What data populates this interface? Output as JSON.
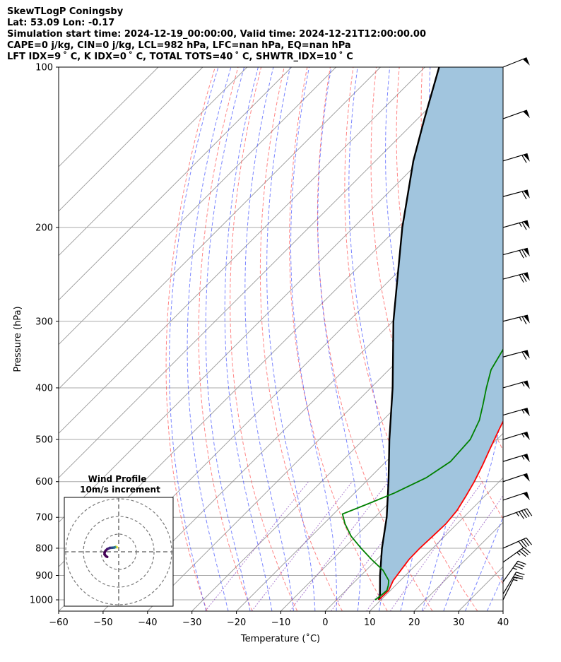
{
  "header": {
    "line1": "SkewTLogP Coningsby",
    "line2": "Lat: 53.09   Lon: -0.17",
    "line3": "Simulation start time: 2024-12-19_00:00:00, Valid time: 2024-12-21T12:00:00.00",
    "line4": "CAPE=0 j/kg, CIN=0 j/kg, LCL=982 hPa, LFC=nan hPa, EQ=nan hPa",
    "line5": "LFT IDX=9 ˚ C, K IDX=0 ˚ C, TOTAL TOTS=40 ˚ C, SHWTR_IDX=10 ˚ C"
  },
  "inset": {
    "title": "Wind Profile",
    "subtitle": "10m/s increment"
  },
  "chart_data": {
    "type": "line",
    "xlabel": "Temperature (˚C)",
    "ylabel": "Pressure (hPa)",
    "xlim": [
      -60,
      40
    ],
    "ylim": [
      1050,
      100
    ],
    "y_scale": "log",
    "x_ticks": [
      "−60",
      "−50",
      "−40",
      "−30",
      "−20",
      "−10",
      "0",
      "10",
      "20",
      "30",
      "40"
    ],
    "y_ticks": [
      "100",
      "200",
      "300",
      "400",
      "500",
      "600",
      "700",
      "800",
      "900",
      "1000"
    ],
    "y_tick_values": [
      100,
      200,
      300,
      400,
      500,
      600,
      700,
      800,
      900,
      1000
    ],
    "colors": {
      "temperature": "#ff0000",
      "dewpoint": "#008000",
      "parcel": "#000000",
      "shade": "#a1c5de",
      "dry_adiabat": "#ff4444",
      "moist_adiabat": "#3344ff",
      "mixing_ratio": "#8844bb",
      "isotherm": "#999999"
    },
    "series": [
      {
        "key": "temperature",
        "values": [
          [
            1000,
            9.5
          ],
          [
            960,
            9.6
          ],
          [
            920,
            8.4
          ],
          [
            880,
            7.8
          ],
          [
            840,
            7.2
          ],
          [
            800,
            7.1
          ],
          [
            760,
            7.3
          ],
          [
            720,
            7.5
          ],
          [
            680,
            7.0
          ],
          [
            640,
            5.8
          ],
          [
            600,
            4.4
          ],
          [
            560,
            2.6
          ],
          [
            520,
            0.5
          ],
          [
            480,
            -1.7
          ],
          [
            440,
            -4.0
          ],
          [
            400,
            -6.6
          ],
          [
            360,
            -9.9
          ],
          [
            320,
            -13.1
          ],
          [
            280,
            -16.5
          ],
          [
            250,
            -18.5
          ],
          [
            230,
            -19.9
          ],
          [
            215,
            -20.4
          ],
          [
            200,
            -20.2
          ],
          [
            190,
            -19.1
          ],
          [
            180,
            -17.2
          ],
          [
            170,
            -14.9
          ],
          [
            158,
            -10.4
          ],
          [
            145,
            -5.8
          ],
          [
            134,
            -2.6
          ],
          [
            124,
            -0.4
          ],
          [
            116,
            0.9
          ],
          [
            108,
            1.4
          ],
          [
            100,
            1.8
          ]
        ]
      },
      {
        "key": "dewpoint",
        "values": [
          [
            1000,
            8.7
          ],
          [
            980,
            9.0
          ],
          [
            960,
            9.2
          ],
          [
            940,
            8.4
          ],
          [
            920,
            7.4
          ],
          [
            880,
            3.8
          ],
          [
            840,
            -1.2
          ],
          [
            800,
            -6.1
          ],
          [
            760,
            -11.0
          ],
          [
            720,
            -15.2
          ],
          [
            690,
            -18.0
          ],
          [
            660,
            -14.5
          ],
          [
            630,
            -11.0
          ],
          [
            590,
            -7.3
          ],
          [
            550,
            -5.5
          ],
          [
            500,
            -6.0
          ],
          [
            460,
            -8.3
          ],
          [
            430,
            -11.0
          ],
          [
            400,
            -14.0
          ],
          [
            370,
            -17.0
          ],
          [
            340,
            -18.8
          ],
          [
            310,
            -20.9
          ],
          [
            280,
            -23.8
          ],
          [
            250,
            -26.8
          ],
          [
            220,
            -28.5
          ],
          [
            200,
            -30.4
          ],
          [
            185,
            -30.4
          ],
          [
            170,
            -29.0
          ],
          [
            160,
            -29.8
          ],
          [
            150,
            -32.0
          ],
          [
            142,
            -34.0
          ],
          [
            130,
            -35.6
          ],
          [
            118,
            -36.5
          ],
          [
            108,
            -37.5
          ],
          [
            100,
            -39.0
          ]
        ]
      },
      {
        "key": "parcel",
        "values": [
          [
            1000,
            9.5
          ],
          [
            982,
            8.8
          ],
          [
            900,
            4.3
          ],
          [
            800,
            -1.4
          ],
          [
            700,
            -7.3
          ],
          [
            600,
            -14.9
          ],
          [
            500,
            -24.2
          ],
          [
            400,
            -35.1
          ],
          [
            300,
            -49.9
          ],
          [
            250,
            -58.5
          ],
          [
            200,
            -69.0
          ],
          [
            150,
            -81.5
          ],
          [
            125,
            -88.5
          ],
          [
            100,
            -96.8
          ]
        ]
      }
    ],
    "wind_barbs": [
      {
        "p": 1000,
        "u": -3,
        "v": -6
      },
      {
        "p": 975,
        "u": -6,
        "v": -10
      },
      {
        "p": 925,
        "u": -10,
        "v": -14
      },
      {
        "p": 850,
        "u": -14,
        "v": -10
      },
      {
        "p": 800,
        "u": -18,
        "v": -8
      },
      {
        "p": 700,
        "u": -22,
        "v": -8
      },
      {
        "p": 650,
        "u": -24,
        "v": -8
      },
      {
        "p": 600,
        "u": -24,
        "v": -8
      },
      {
        "p": 550,
        "u": -26,
        "v": -8
      },
      {
        "p": 500,
        "u": -26,
        "v": -8
      },
      {
        "p": 450,
        "u": -28,
        "v": -8
      },
      {
        "p": 400,
        "u": -28,
        "v": -8
      },
      {
        "p": 350,
        "u": -30,
        "v": -8
      },
      {
        "p": 300,
        "u": -32,
        "v": -8
      },
      {
        "p": 250,
        "u": -34,
        "v": -9
      },
      {
        "p": 225,
        "u": -34,
        "v": -9
      },
      {
        "p": 200,
        "u": -32,
        "v": -9
      },
      {
        "p": 175,
        "u": -30,
        "v": -8
      },
      {
        "p": 150,
        "u": -30,
        "v": -9
      },
      {
        "p": 125,
        "u": -25,
        "v": -9
      },
      {
        "p": 100,
        "u": -25,
        "v": -10
      }
    ],
    "hodograph": {
      "increment_ms": 10,
      "rings": 3,
      "points": [
        [
          2.5,
          1.0
        ],
        [
          2.8,
          1.6
        ],
        [
          2.6,
          2.0
        ],
        [
          2.4,
          2.5
        ],
        [
          2.3,
          3.6
        ],
        [
          2.2,
          5.0
        ],
        [
          1.5,
          6.5
        ],
        [
          0.5,
          7.5
        ],
        [
          -0.5,
          8.0
        ],
        [
          -1.5,
          8.0
        ],
        [
          -2.5,
          7.2
        ],
        [
          -2.9,
          6.5
        ]
      ]
    }
  }
}
